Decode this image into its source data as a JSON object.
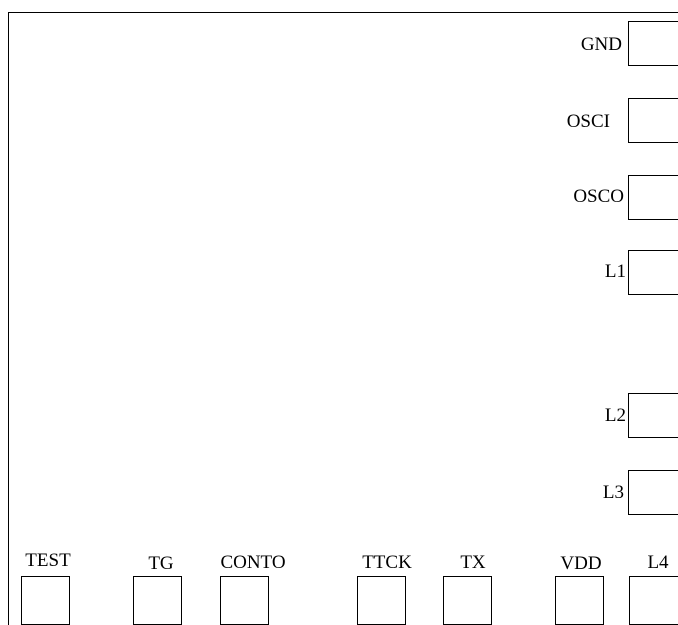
{
  "right_pins": [
    {
      "label": "GND"
    },
    {
      "label": "OSCI"
    },
    {
      "label": "OSCO"
    },
    {
      "label": "L1"
    },
    {
      "label": "L2"
    },
    {
      "label": "L3"
    }
  ],
  "bottom_pins": [
    {
      "label": "TEST"
    },
    {
      "label": "TG"
    },
    {
      "label": "CONTO"
    },
    {
      "label": "TTCK"
    },
    {
      "label": "TX"
    },
    {
      "label": "VDD"
    },
    {
      "label": "L4"
    }
  ],
  "colors": {
    "line": "#000000",
    "background": "#ffffff"
  }
}
